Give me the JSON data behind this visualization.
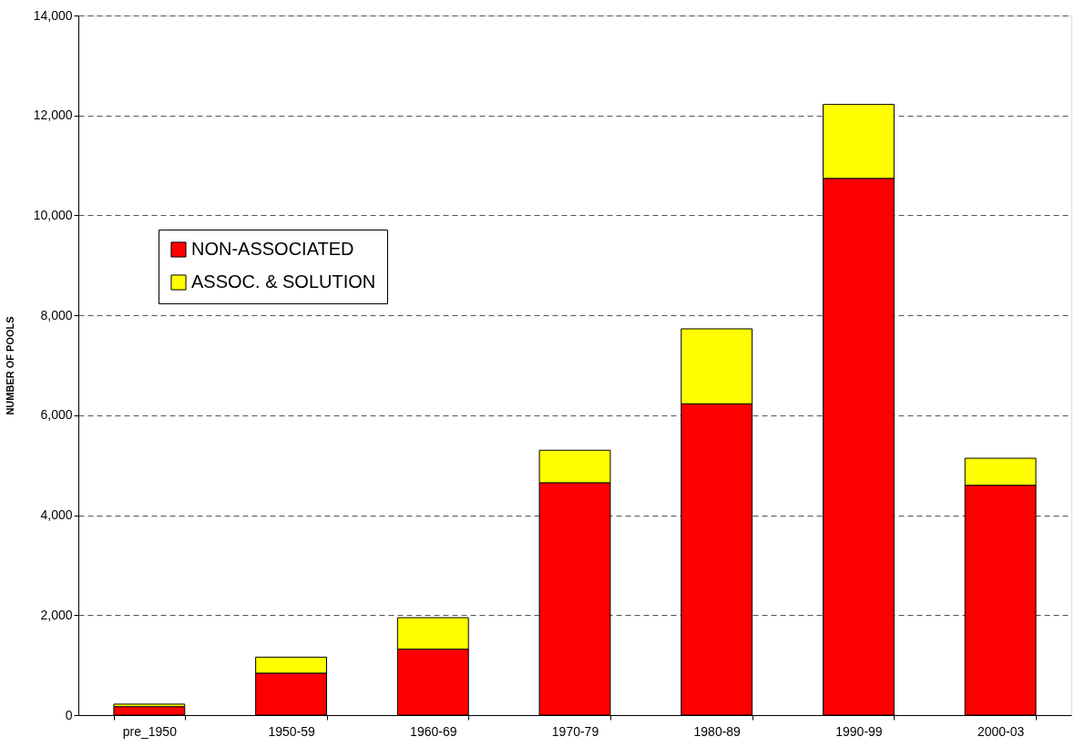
{
  "chart_data": {
    "type": "bar",
    "stacked": true,
    "ylabel": "NUMBER OF POOLS",
    "categories": [
      "pre_1950",
      "1950-59",
      "1960-69",
      "1970-79",
      "1980-89",
      "1990-99",
      "2000-03"
    ],
    "series": [
      {
        "name": "NON-ASSOCIATED",
        "color": "#ff0000",
        "values": [
          170,
          840,
          1320,
          4650,
          6230,
          10740,
          4600
        ]
      },
      {
        "name": "ASSOC. & SOLUTION",
        "color": "#ffff00",
        "values": [
          50,
          320,
          630,
          650,
          1500,
          1480,
          540
        ]
      }
    ],
    "ylim": [
      0,
      14000
    ],
    "yticks": [
      {
        "value": 0,
        "label": "0"
      },
      {
        "value": 2000,
        "label": "2,000"
      },
      {
        "value": 4000,
        "label": "4,000"
      },
      {
        "value": 6000,
        "label": "6,000"
      },
      {
        "value": 8000,
        "label": "8,000"
      },
      {
        "value": 10000,
        "label": "10,000"
      },
      {
        "value": 12000,
        "label": "12,000"
      },
      {
        "value": 14000,
        "label": "14,000"
      }
    ],
    "grid": "y",
    "legend": "top left"
  }
}
